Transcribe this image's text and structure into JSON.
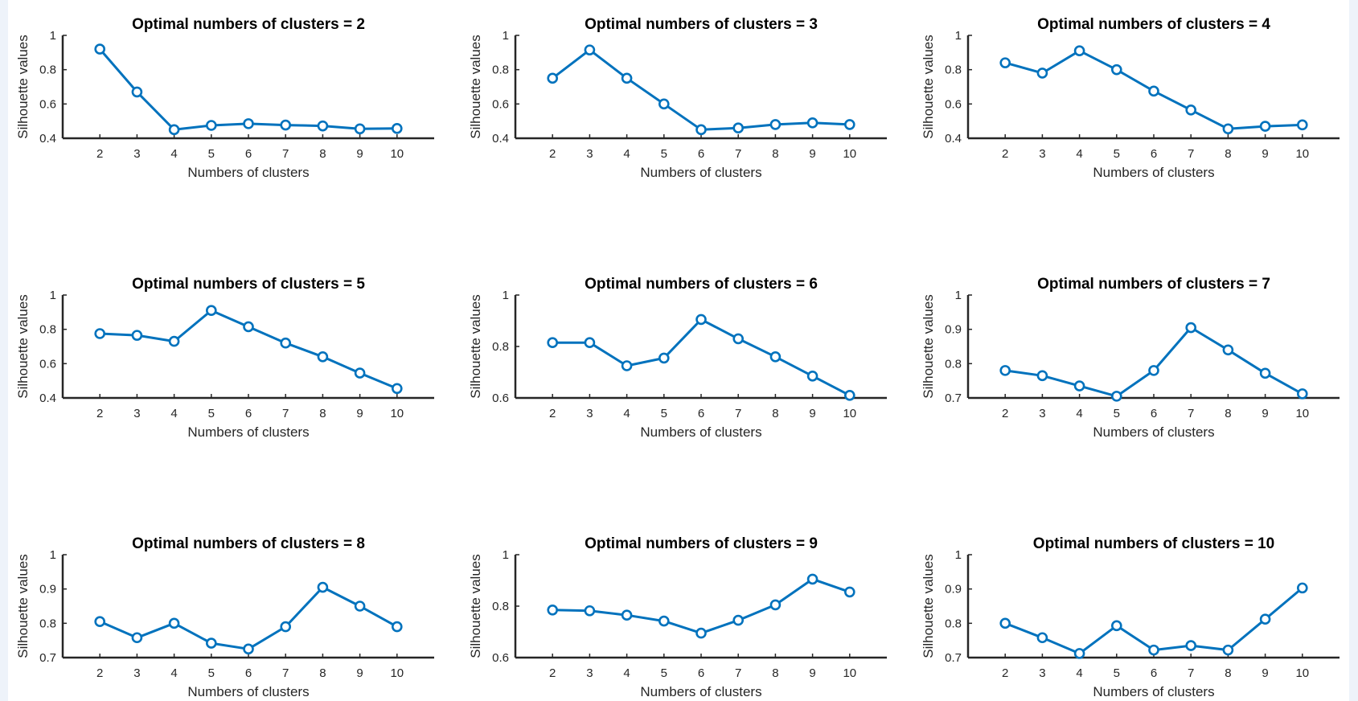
{
  "colors": {
    "line": "#0072bd",
    "axis": "#262626",
    "background": "#ffffff"
  },
  "chart_data": [
    {
      "type": "line",
      "title": "Optimal numbers of clusters = 2",
      "xlabel": "Numbers of clusters",
      "ylabel": "Silhouette values",
      "x": [
        2,
        3,
        4,
        5,
        6,
        7,
        8,
        9,
        10
      ],
      "y": [
        0.92,
        0.67,
        0.45,
        0.475,
        0.485,
        0.477,
        0.472,
        0.455,
        0.457
      ],
      "xlim": [
        1,
        11
      ],
      "ylim": [
        0.4,
        1
      ],
      "yticks": [
        "0.4",
        "0.6",
        "0.8",
        "1"
      ],
      "marker": "circle",
      "grid": false
    },
    {
      "type": "line",
      "title": "Optimal numbers of clusters = 3",
      "xlabel": "Numbers of clusters",
      "ylabel": "Silhouette values",
      "x": [
        2,
        3,
        4,
        5,
        6,
        7,
        8,
        9,
        10
      ],
      "y": [
        0.75,
        0.915,
        0.75,
        0.6,
        0.45,
        0.46,
        0.48,
        0.49,
        0.48
      ],
      "xlim": [
        1,
        11
      ],
      "ylim": [
        0.4,
        1
      ],
      "yticks": [
        "0.4",
        "0.6",
        "0.8",
        "1"
      ],
      "marker": "circle",
      "grid": false
    },
    {
      "type": "line",
      "title": "Optimal numbers of clusters = 4",
      "xlabel": "Numbers of clusters",
      "ylabel": "Silhouette values",
      "x": [
        2,
        3,
        4,
        5,
        6,
        7,
        8,
        9,
        10
      ],
      "y": [
        0.84,
        0.78,
        0.91,
        0.8,
        0.675,
        0.565,
        0.455,
        0.47,
        0.478
      ],
      "xlim": [
        1,
        11
      ],
      "ylim": [
        0.4,
        1
      ],
      "yticks": [
        "0.4",
        "0.6",
        "0.8",
        "1"
      ],
      "marker": "circle",
      "grid": false
    },
    {
      "type": "line",
      "title": "Optimal numbers of clusters = 5",
      "xlabel": "Numbers of clusters",
      "ylabel": "Silhouette values",
      "x": [
        2,
        3,
        4,
        5,
        6,
        7,
        8,
        9,
        10
      ],
      "y": [
        0.775,
        0.765,
        0.73,
        0.91,
        0.815,
        0.72,
        0.64,
        0.545,
        0.455
      ],
      "xlim": [
        1,
        11
      ],
      "ylim": [
        0.4,
        1
      ],
      "yticks": [
        "0.4",
        "0.6",
        "0.8",
        "1"
      ],
      "marker": "circle",
      "grid": false
    },
    {
      "type": "line",
      "title": "Optimal numbers of clusters = 6",
      "xlabel": "Numbers of clusters",
      "ylabel": "Silhouette values",
      "x": [
        2,
        3,
        4,
        5,
        6,
        7,
        8,
        9,
        10
      ],
      "y": [
        0.815,
        0.815,
        0.725,
        0.755,
        0.905,
        0.83,
        0.76,
        0.685,
        0.61
      ],
      "xlim": [
        1,
        11
      ],
      "ylim": [
        0.6,
        1
      ],
      "yticks": [
        "0.6",
        "0.8",
        "1"
      ],
      "marker": "circle",
      "grid": false
    },
    {
      "type": "line",
      "title": "Optimal numbers of clusters = 7",
      "xlabel": "Numbers of clusters",
      "ylabel": "Silhouette values",
      "x": [
        2,
        3,
        4,
        5,
        6,
        7,
        8,
        9,
        10
      ],
      "y": [
        0.78,
        0.765,
        0.735,
        0.705,
        0.78,
        0.905,
        0.84,
        0.772,
        0.712
      ],
      "xlim": [
        1,
        11
      ],
      "ylim": [
        0.7,
        1
      ],
      "yticks": [
        "0.7",
        "0.8",
        "0.9",
        "1"
      ],
      "marker": "circle",
      "grid": false
    },
    {
      "type": "line",
      "title": "Optimal numbers of clusters = 8",
      "xlabel": "Numbers of clusters",
      "ylabel": "Silhouette values",
      "x": [
        2,
        3,
        4,
        5,
        6,
        7,
        8,
        9,
        10
      ],
      "y": [
        0.805,
        0.758,
        0.8,
        0.742,
        0.725,
        0.79,
        0.905,
        0.85,
        0.79
      ],
      "xlim": [
        1,
        11
      ],
      "ylim": [
        0.7,
        1
      ],
      "yticks": [
        "0.7",
        "0.8",
        "0.9",
        "1"
      ],
      "marker": "circle",
      "grid": false
    },
    {
      "type": "line",
      "title": "Optimal numbers of clusters = 9",
      "xlabel": "Numbers of clusters",
      "ylabel": "Silhouette values",
      "x": [
        2,
        3,
        4,
        5,
        6,
        7,
        8,
        9,
        10
      ],
      "y": [
        0.785,
        0.782,
        0.765,
        0.742,
        0.695,
        0.745,
        0.805,
        0.905,
        0.855
      ],
      "xlim": [
        1,
        11
      ],
      "ylim": [
        0.6,
        1
      ],
      "yticks": [
        "0.6",
        "0.8",
        "1"
      ],
      "marker": "circle",
      "grid": false
    },
    {
      "type": "line",
      "title": "Optimal numbers of clusters = 10",
      "xlabel": "Numbers of clusters",
      "ylabel": "Silhouette values",
      "x": [
        2,
        3,
        4,
        5,
        6,
        7,
        8,
        9,
        10
      ],
      "y": [
        0.8,
        0.758,
        0.712,
        0.793,
        0.722,
        0.735,
        0.722,
        0.812,
        0.903
      ],
      "xlim": [
        1,
        11
      ],
      "ylim": [
        0.7,
        1
      ],
      "yticks": [
        "0.7",
        "0.8",
        "0.9",
        "1"
      ],
      "marker": "circle",
      "grid": false
    }
  ]
}
